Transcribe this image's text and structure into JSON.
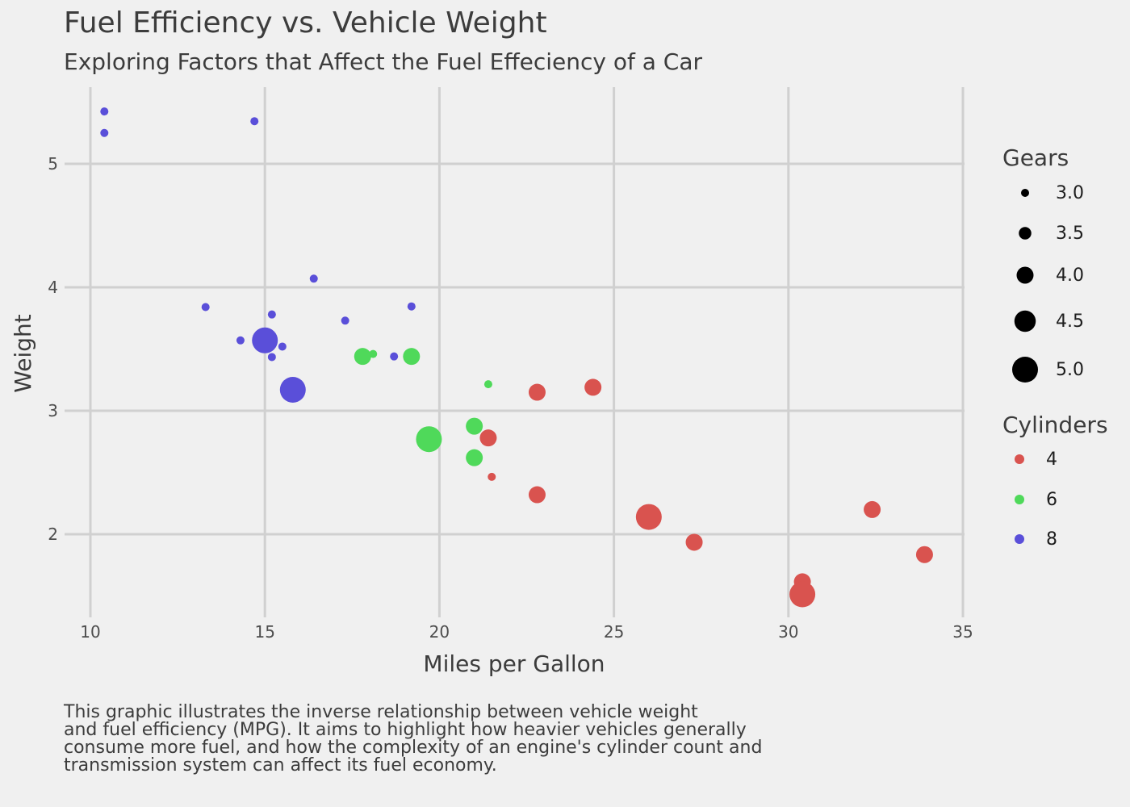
{
  "chart_data": {
    "type": "scatter",
    "title": "Fuel Efficiency vs. Vehicle Weight",
    "subtitle": "Exploring Factors that Affect the Fuel Effeciency of a Car",
    "xlabel": "Miles per Gallon",
    "ylabel": "Weight",
    "caption": "This graphic illustrates the inverse relationship between vehicle weight\nand fuel efficiency (MPG). It aims to highlight how heavier vehicles generally\nconsume more fuel, and how the complexity of an engine's cylinder count and\ntransmission system can affect its fuel economy.",
    "xlim": [
      9.2,
      35.2
    ],
    "ylim": [
      1.35,
      5.6
    ],
    "xticks": [
      "10",
      "15",
      "20",
      "25",
      "30",
      "35"
    ],
    "yticks": [
      "2",
      "3",
      "4",
      "5"
    ],
    "grid": true,
    "size_legend": {
      "title": "Gears",
      "entries": [
        {
          "label": "3.0",
          "value": 3.0
        },
        {
          "label": "3.5",
          "value": 3.5
        },
        {
          "label": "4.0",
          "value": 4.0
        },
        {
          "label": "4.5",
          "value": 4.5
        },
        {
          "label": "5.0",
          "value": 5.0
        }
      ]
    },
    "color_legend": {
      "title": "Cylinders",
      "entries": [
        {
          "label": "4",
          "color": "#d9534f"
        },
        {
          "label": "6",
          "color": "#4fd95a"
        },
        {
          "label": "8",
          "color": "#5a4fd9"
        }
      ]
    },
    "series": [
      {
        "cyl": "4",
        "color": "#d9534f",
        "points": [
          {
            "x": 22.8,
            "y": 2.32,
            "gear": 4
          },
          {
            "x": 24.4,
            "y": 3.19,
            "gear": 4
          },
          {
            "x": 22.8,
            "y": 3.15,
            "gear": 4
          },
          {
            "x": 32.4,
            "y": 2.2,
            "gear": 4
          },
          {
            "x": 30.4,
            "y": 1.615,
            "gear": 4
          },
          {
            "x": 33.9,
            "y": 1.835,
            "gear": 4
          },
          {
            "x": 21.5,
            "y": 2.465,
            "gear": 3
          },
          {
            "x": 27.3,
            "y": 1.935,
            "gear": 4
          },
          {
            "x": 26.0,
            "y": 2.14,
            "gear": 5
          },
          {
            "x": 30.4,
            "y": 1.513,
            "gear": 5
          },
          {
            "x": 21.4,
            "y": 2.78,
            "gear": 4
          }
        ]
      },
      {
        "cyl": "6",
        "color": "#4fd95a",
        "points": [
          {
            "x": 21.0,
            "y": 2.62,
            "gear": 4
          },
          {
            "x": 21.0,
            "y": 2.875,
            "gear": 4
          },
          {
            "x": 21.4,
            "y": 3.215,
            "gear": 3
          },
          {
            "x": 18.1,
            "y": 3.46,
            "gear": 3
          },
          {
            "x": 19.2,
            "y": 3.44,
            "gear": 4
          },
          {
            "x": 17.8,
            "y": 3.44,
            "gear": 4
          },
          {
            "x": 19.7,
            "y": 2.77,
            "gear": 5
          }
        ]
      },
      {
        "cyl": "8",
        "color": "#5a4fd9",
        "points": [
          {
            "x": 18.7,
            "y": 3.44,
            "gear": 3
          },
          {
            "x": 14.3,
            "y": 3.57,
            "gear": 3
          },
          {
            "x": 16.4,
            "y": 4.07,
            "gear": 3
          },
          {
            "x": 17.3,
            "y": 3.73,
            "gear": 3
          },
          {
            "x": 15.2,
            "y": 3.78,
            "gear": 3
          },
          {
            "x": 10.4,
            "y": 5.25,
            "gear": 3
          },
          {
            "x": 10.4,
            "y": 5.424,
            "gear": 3
          },
          {
            "x": 14.7,
            "y": 5.345,
            "gear": 3
          },
          {
            "x": 15.5,
            "y": 3.52,
            "gear": 3
          },
          {
            "x": 15.2,
            "y": 3.435,
            "gear": 3
          },
          {
            "x": 13.3,
            "y": 3.84,
            "gear": 3
          },
          {
            "x": 19.2,
            "y": 3.845,
            "gear": 3
          },
          {
            "x": 15.8,
            "y": 3.17,
            "gear": 5
          },
          {
            "x": 15.0,
            "y": 3.57,
            "gear": 5
          }
        ]
      }
    ]
  }
}
